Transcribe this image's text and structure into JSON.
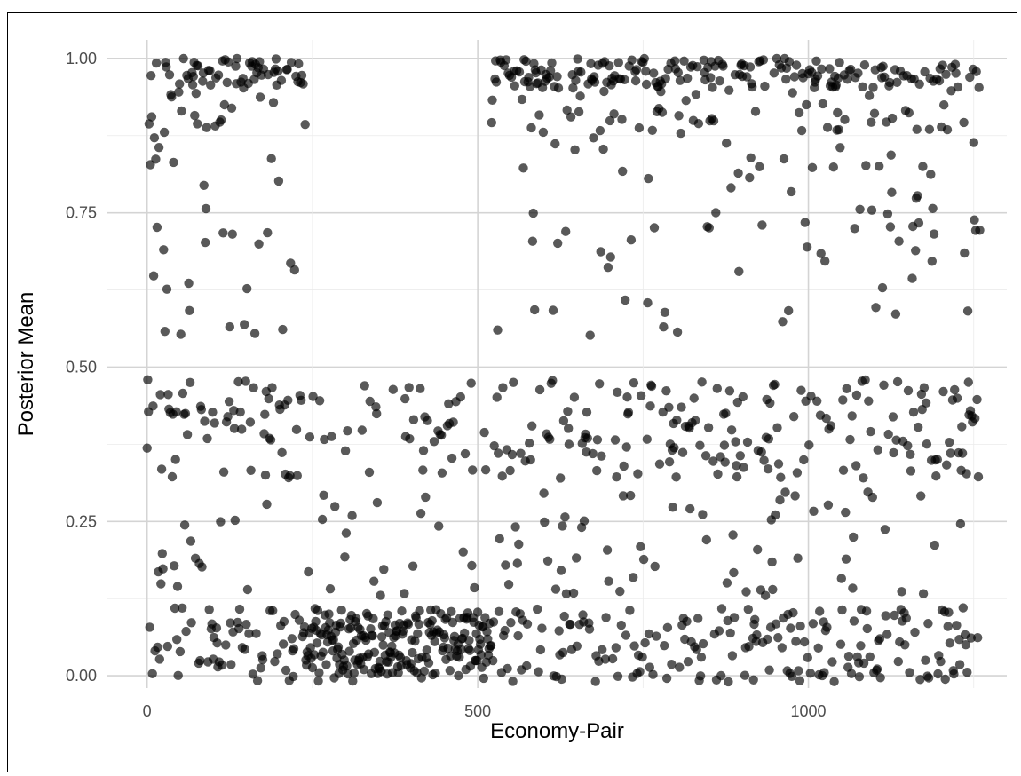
{
  "chart_data": {
    "type": "scatter",
    "title": "",
    "xlabel": "Economy-Pair",
    "ylabel": "Posterior Mean",
    "xlim": [
      -60,
      1300
    ],
    "ylim": [
      -0.02,
      1.03
    ],
    "x_ticks": [
      0,
      500,
      1000
    ],
    "x_tick_labels": [
      "0",
      "500",
      "1000"
    ],
    "y_ticks": [
      0.0,
      0.25,
      0.5,
      0.75,
      1.0
    ],
    "y_tick_labels": [
      "0.00",
      "0.25",
      "0.50",
      "0.75",
      "1.00"
    ],
    "n_points": 1260,
    "point_color": "#000000",
    "point_opacity": 0.65,
    "grid": true,
    "legend": "none",
    "series": [
      {
        "values_by_band": {
          "near_one": [
            0.99,
            0.97,
            0.95,
            0.98,
            0.93,
            0.96,
            0.88,
            0.99,
            0.92,
            0.97,
            0.91,
            0.98,
            0.94,
            0.96,
            0.9,
            0.99,
            0.97,
            0.95,
            0.93,
            0.98
          ],
          "upper_mid": [
            0.82,
            0.78,
            0.74,
            0.7,
            0.66,
            0.62,
            0.58,
            0.54,
            0.8,
            0.72,
            0.68,
            0.6,
            0.56,
            0.76,
            0.64
          ],
          "middle": [
            0.47,
            0.45,
            0.43,
            0.41,
            0.39,
            0.37,
            0.35,
            0.33,
            0.46,
            0.44,
            0.42,
            0.4,
            0.38,
            0.36,
            0.34,
            0.3,
            0.28,
            0.26
          ],
          "lower_mid": [
            0.24,
            0.22,
            0.2,
            0.18,
            0.16,
            0.14,
            0.23,
            0.19,
            0.15,
            0.21
          ],
          "near_zero": [
            0.11,
            0.1,
            0.09,
            0.08,
            0.07,
            0.06,
            0.05,
            0.04,
            0.03,
            0.02,
            0.01,
            0.0,
            0.1,
            0.08,
            0.05,
            0.02,
            0.09,
            0.06,
            0.03,
            0.01
          ]
        }
      }
    ]
  }
}
